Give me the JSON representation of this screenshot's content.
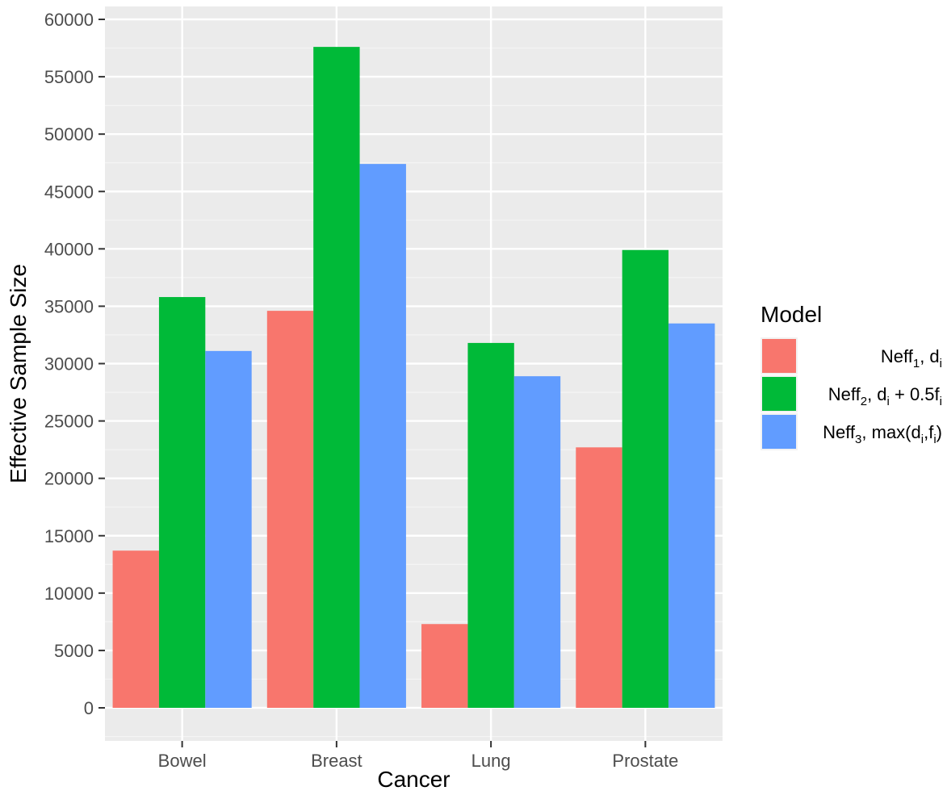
{
  "chart_data": {
    "type": "bar",
    "xlabel": "Cancer",
    "ylabel": "Effective Sample Size",
    "categories": [
      "Bowel",
      "Breast",
      "Lung",
      "Prostate"
    ],
    "ylim": [
      -3000,
      60300
    ],
    "yticks": [
      0,
      5000,
      10000,
      15000,
      20000,
      25000,
      30000,
      35000,
      40000,
      45000,
      50000,
      55000,
      60000
    ],
    "ytick_labels": [
      "0",
      "5000",
      "10000",
      "15000",
      "20000",
      "25000",
      "30000",
      "35000",
      "40000",
      "45000",
      "50000",
      "55000",
      "60000"
    ],
    "grid": true,
    "legend": {
      "title": "Model",
      "position": "right",
      "entries": [
        {
          "base": "Neff",
          "sub1": "1",
          "rest": ", d",
          "sub2": "i",
          "tail": ""
        },
        {
          "base": "Neff",
          "sub1": "2",
          "rest": ", d",
          "sub2": "i",
          "tail": " + 0.5f",
          "sub3": "i"
        },
        {
          "base": "Neff",
          "sub1": "3",
          "rest": ", max(d",
          "sub2": "i",
          "tail": ",f",
          "sub3": "i",
          "end": ")"
        }
      ]
    },
    "series": [
      {
        "color": "#F8766D",
        "values": [
          13700,
          34600,
          7300,
          22700
        ]
      },
      {
        "color": "#00BA38",
        "values": [
          35800,
          57600,
          31800,
          39900
        ]
      },
      {
        "color": "#619CFF",
        "values": [
          31100,
          47400,
          28900,
          33500
        ]
      }
    ]
  }
}
